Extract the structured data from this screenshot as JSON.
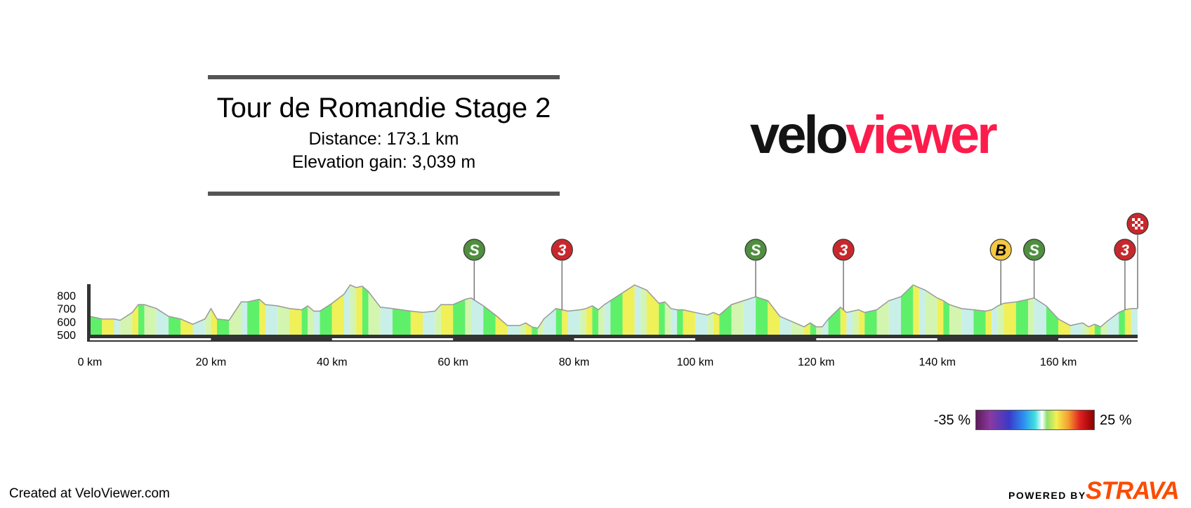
{
  "info": {
    "title": "Tour de Romandie Stage 2",
    "distance": "Distance: 173.1 km",
    "elevation_gain": "Elevation gain: 3,039 m"
  },
  "brand": {
    "part1": "velo",
    "part2": "viewer"
  },
  "legend": {
    "min_label": "-35 %",
    "max_label": "25 %"
  },
  "footer": {
    "created": "Created at VeloViewer.com",
    "powered_by": "POWERED BY",
    "strava": "STRAVA"
  },
  "colors": {
    "line": "#999999",
    "axis": "#333333",
    "brand_dark": "#141414",
    "brand_pink": "#fc1c4c",
    "sprint_green": "#4f8f3f",
    "climb_red": "#c8282d",
    "bonus_yellow": "#f5c842",
    "strava_orange": "#fc4c02"
  },
  "chart_data": {
    "type": "area",
    "xlabel": "",
    "ylabel": "",
    "xlim": [
      0,
      173.1
    ],
    "ylim": [
      500,
      900
    ],
    "x_ticks": [
      0,
      20,
      40,
      60,
      80,
      100,
      120,
      140,
      160
    ],
    "x_tick_labels": [
      "0 km",
      "20 km",
      "40 km",
      "60 km",
      "80 km",
      "100 km",
      "120 km",
      "140 km",
      "160 km"
    ],
    "y_ticks": [
      500,
      600,
      700,
      800
    ],
    "y_tick_labels": [
      "500",
      "600",
      "700",
      "800"
    ],
    "gradient_colors": [
      "#5ff06a",
      "#a8e8b0",
      "#d4f5b0",
      "#eef5a0",
      "#f0f058",
      "#7be8e8",
      "#c8f0e8",
      "#b0ecd0"
    ],
    "profile": {
      "x": [
        0,
        2,
        4,
        5,
        7,
        8,
        9,
        11,
        13,
        15,
        17,
        19,
        20,
        21,
        23,
        25,
        26,
        28,
        29,
        31,
        33,
        35,
        36,
        37,
        38,
        40,
        42,
        43,
        44,
        45,
        46,
        48,
        50,
        53,
        55,
        57,
        58,
        60,
        62,
        63,
        65,
        67,
        69,
        71,
        72,
        73,
        74,
        75,
        77,
        78,
        79,
        81,
        82,
        83,
        84,
        85,
        86,
        88,
        90,
        91,
        92,
        94,
        95,
        96,
        97,
        98,
        100,
        102,
        103,
        104,
        106,
        108,
        110,
        112,
        114,
        116,
        118,
        119,
        120,
        121,
        122,
        124,
        125,
        126,
        127,
        128,
        130,
        132,
        134,
        136,
        137,
        138,
        140,
        141,
        142,
        144,
        146,
        148,
        149,
        150,
        151,
        153,
        155,
        156,
        158,
        160,
        162,
        164,
        165,
        166,
        167,
        168,
        170,
        171,
        172,
        173.1
      ],
      "y": [
        640,
        620,
        620,
        610,
        670,
        730,
        730,
        700,
        640,
        620,
        580,
        620,
        700,
        620,
        610,
        750,
        750,
        770,
        730,
        720,
        700,
        690,
        720,
        680,
        680,
        740,
        810,
        880,
        860,
        870,
        830,
        710,
        700,
        680,
        670,
        680,
        730,
        730,
        770,
        780,
        720,
        650,
        570,
        570,
        590,
        560,
        550,
        620,
        700,
        690,
        680,
        690,
        700,
        720,
        690,
        730,
        760,
        820,
        880,
        860,
        840,
        740,
        750,
        700,
        690,
        690,
        670,
        650,
        670,
        650,
        730,
        760,
        790,
        760,
        640,
        600,
        560,
        590,
        560,
        560,
        620,
        710,
        670,
        680,
        690,
        670,
        690,
        760,
        790,
        880,
        860,
        840,
        780,
        760,
        730,
        700,
        690,
        680,
        690,
        720,
        740,
        750,
        770,
        780,
        720,
        620,
        570,
        590,
        560,
        580,
        560,
        600,
        670,
        690,
        700,
        700
      ]
    },
    "markers": [
      {
        "km": 63.5,
        "label": "S",
        "kind": "sprint",
        "color": "#4f8f3f"
      },
      {
        "km": 78,
        "label": "3",
        "kind": "climb",
        "color": "#c8282d"
      },
      {
        "km": 110,
        "label": "S",
        "kind": "sprint",
        "color": "#4f8f3f"
      },
      {
        "km": 124.5,
        "label": "3",
        "kind": "climb",
        "color": "#c8282d"
      },
      {
        "km": 150.5,
        "label": "B",
        "kind": "bonus",
        "color": "#f5c842"
      },
      {
        "km": 156,
        "label": "S",
        "kind": "sprint",
        "color": "#4f8f3f"
      },
      {
        "km": 171,
        "label": "3",
        "kind": "climb",
        "color": "#c8282d"
      },
      {
        "km": 173.1,
        "label": "",
        "kind": "finish",
        "color": "#c8282d"
      }
    ]
  }
}
